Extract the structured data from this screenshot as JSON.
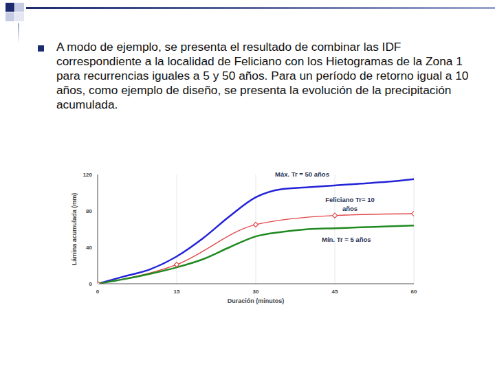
{
  "text": {
    "bullet": "A modo de ejemplo, se presenta el resultado de combinar las IDF correspondiente a la localidad de  Feliciano con los Hietogramas de la Zona 1 para recurrencias iguales a 5 y 50 años. Para un período de retorno igual a 10 años, como ejemplo de diseño, se presenta la evolución de la precipitación acumulada."
  },
  "chart_data": {
    "type": "line",
    "x_label": "Duración (minutos)",
    "y_label": "Lámina acumulada (mm)",
    "xlim": [
      0,
      60
    ],
    "xticks": [
      0,
      15,
      30,
      45,
      60
    ],
    "ylim": [
      0,
      120
    ],
    "yticks": [
      0,
      40,
      80,
      120
    ],
    "grid": true,
    "series": [
      {
        "name": "Máx. Tr = 50 años",
        "color": "#2323d8",
        "marker": "none",
        "x": [
          0,
          5,
          10,
          15,
          20,
          25,
          30,
          35,
          40,
          45,
          50,
          55,
          60
        ],
        "values": [
          0,
          8,
          16,
          30,
          50,
          74,
          95,
          104,
          106,
          108,
          110,
          112,
          115
        ]
      },
      {
        "name": "Feliciano Tr= 10 años",
        "color": "#e04848",
        "marker": "diamond",
        "x": [
          0,
          15,
          30,
          45,
          60
        ],
        "values": [
          0,
          21,
          65,
          75,
          77
        ]
      },
      {
        "name": "Mín. Tr = 5 años",
        "color": "#1f8a1f",
        "marker": "none",
        "x": [
          0,
          5,
          10,
          15,
          20,
          25,
          30,
          35,
          40,
          45,
          50,
          55,
          60
        ],
        "values": [
          0,
          5,
          11,
          18,
          27,
          40,
          52,
          57,
          60,
          61,
          62,
          63,
          64
        ]
      }
    ]
  }
}
